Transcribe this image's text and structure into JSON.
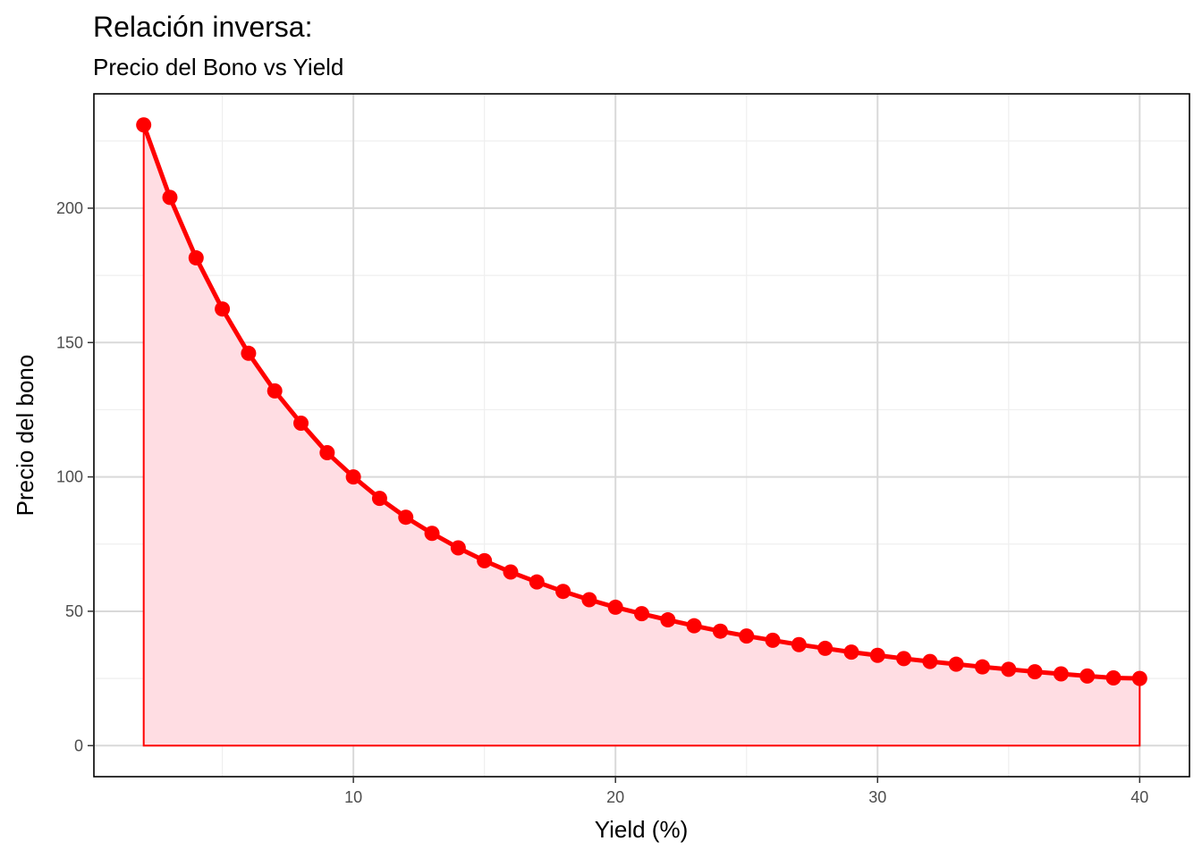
{
  "chart_data": {
    "type": "area",
    "title": "Relación inversa:",
    "subtitle": "Precio del Bono vs Yield",
    "xlabel": "Yield (%)",
    "ylabel": "Precio del bono",
    "xlim": [
      0.1,
      41.9
    ],
    "ylim": [
      -11.55,
      242.55
    ],
    "x_ticks": [
      10,
      20,
      30,
      40
    ],
    "x_tick_labels": [
      "10",
      "20",
      "30",
      "40"
    ],
    "y_ticks": [
      0,
      50,
      100,
      150,
      200
    ],
    "y_tick_labels": [
      "0",
      "50",
      "100",
      "150",
      "200"
    ],
    "x_minor_ticks": [
      5,
      15,
      25,
      35
    ],
    "y_minor_ticks": [
      25,
      75,
      125,
      175,
      225
    ],
    "grid": true,
    "legend": "none",
    "colors": {
      "line": "#ff0000",
      "points": "#ff0000",
      "fill": "#ffdde3",
      "area_border": "#ff0000",
      "grid_major": "#d9d9d9",
      "grid_minor": "#efefef",
      "panel_border": "#000000"
    },
    "series": [
      {
        "x": [
          2,
          3,
          4,
          5,
          6,
          7,
          8,
          9,
          10,
          11,
          12,
          13,
          14,
          15,
          16,
          17,
          18,
          19,
          20,
          21,
          22,
          23,
          24,
          25,
          26,
          27,
          28,
          29,
          30,
          31,
          32,
          33,
          34,
          35,
          36,
          37,
          38,
          39,
          40
        ],
        "values": [
          231,
          204,
          181.5,
          162.5,
          146,
          132,
          120,
          109,
          100,
          92,
          85,
          79,
          73.6,
          68.8,
          64.6,
          60.9,
          57.4,
          54.3,
          51.5,
          49.1,
          46.8,
          44.6,
          42.6,
          40.8,
          39.2,
          37.6,
          36.2,
          34.8,
          33.6,
          32.4,
          31.3,
          30.3,
          29.3,
          28.4,
          27.5,
          26.7,
          25.9,
          25.2,
          25
        ]
      }
    ]
  }
}
